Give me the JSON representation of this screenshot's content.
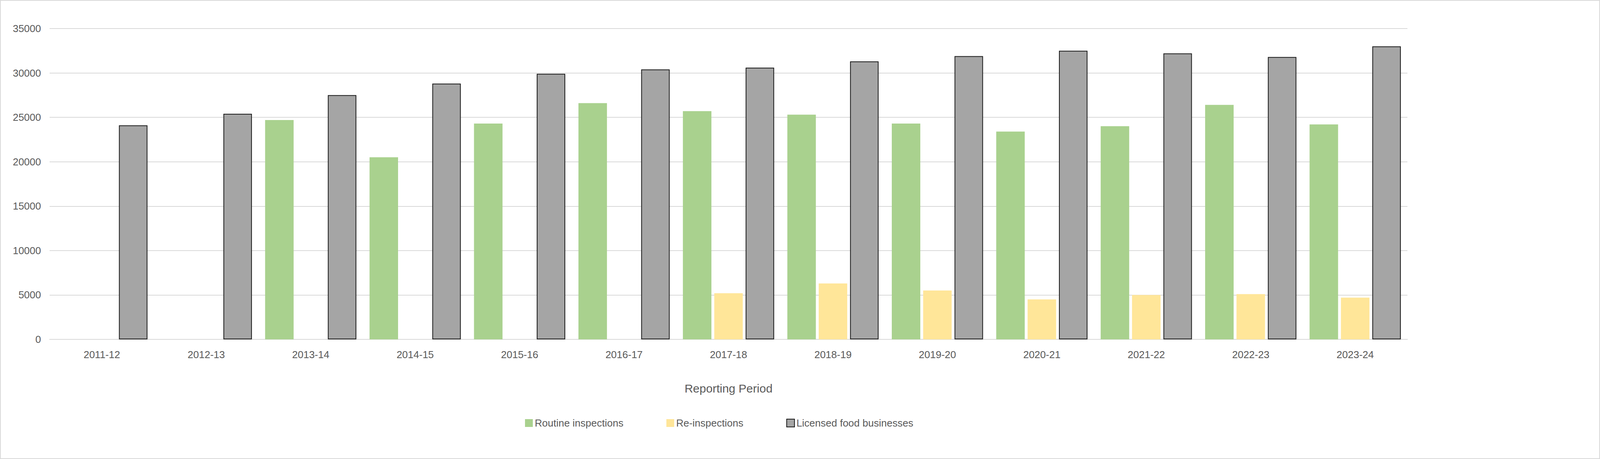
{
  "chart_data": {
    "type": "bar",
    "x_label": "Reporting Period",
    "categories": [
      "2011-12",
      "2012-13",
      "2013-14",
      "2014-15",
      "2015-16",
      "2016-17",
      "2017-18",
      "2018-19",
      "2019-20",
      "2020-21",
      "2021-22",
      "2022-23",
      "2023-24"
    ],
    "series": [
      {
        "name": "Routine inspections",
        "color": "#a9d18e",
        "values": [
          null,
          null,
          24700,
          20500,
          24300,
          26600,
          25700,
          25300,
          24300,
          23400,
          24000,
          26400,
          24200
        ]
      },
      {
        "name": "Re-inspections",
        "color": "#ffe699",
        "values": [
          null,
          null,
          null,
          null,
          null,
          null,
          5200,
          6300,
          5500,
          4500,
          5000,
          5100,
          4700
        ]
      },
      {
        "name": "Licensed food businesses",
        "color": "#a5a5a5",
        "values": [
          24100,
          25400,
          27500,
          28800,
          29900,
          30400,
          30600,
          31300,
          31900,
          32500,
          32200,
          31800,
          33000
        ]
      }
    ],
    "ylim": [
      0,
      35000
    ],
    "yticks": [
      0,
      5000,
      10000,
      15000,
      20000,
      25000,
      30000,
      35000
    ],
    "grid": true,
    "legend": "bottom"
  }
}
